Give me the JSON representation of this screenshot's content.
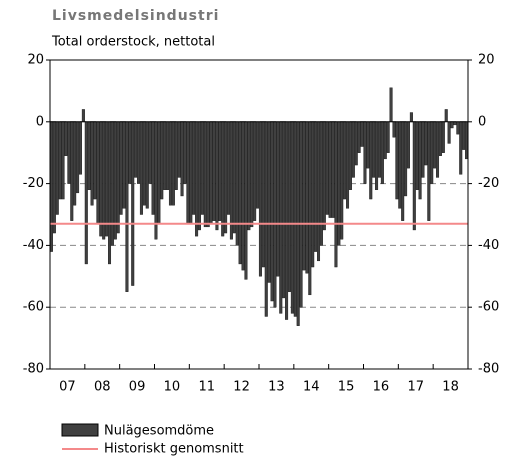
{
  "chart_data": {
    "type": "bar",
    "title": "Livsmedelsindustri",
    "subtitle": "Total orderstock, nettotal",
    "categories": [
      null,
      null,
      null,
      null,
      null,
      null,
      "07",
      null,
      null,
      null,
      null,
      null,
      null,
      null,
      null,
      null,
      null,
      null,
      "08",
      null,
      null,
      null,
      null,
      null,
      null,
      null,
      null,
      null,
      null,
      null,
      "09",
      null,
      null,
      null,
      null,
      null,
      null,
      null,
      null,
      null,
      null,
      null,
      "10",
      null,
      null,
      null,
      null,
      null,
      null,
      null,
      null,
      null,
      null,
      null,
      "11",
      null,
      null,
      null,
      null,
      null,
      null,
      null,
      null,
      null,
      null,
      null,
      "12",
      null,
      null,
      null,
      null,
      null,
      null,
      null,
      null,
      null,
      null,
      null,
      "13",
      null,
      null,
      null,
      null,
      null,
      null,
      null,
      null,
      null,
      null,
      null,
      "14",
      null,
      null,
      null,
      null,
      null,
      null,
      null,
      null,
      null,
      null,
      null,
      "15",
      null,
      null,
      null,
      null,
      null,
      null,
      null,
      null,
      null,
      null,
      null,
      "16",
      null,
      null,
      null,
      null,
      null,
      null,
      null,
      null,
      null,
      null,
      null,
      "17",
      null,
      null,
      null,
      null,
      null,
      null,
      null,
      null,
      null,
      null,
      null,
      "18",
      null,
      null,
      null,
      null,
      null
    ],
    "series": [
      {
        "name": "Nulägesomdöme",
        "color": "#404040",
        "values": [
          -42,
          -36,
          -30,
          -25,
          -25,
          -11,
          -20,
          -32,
          -27,
          -23,
          -17,
          4,
          -46,
          -22,
          -27,
          -25,
          -33,
          -37,
          -38,
          -37,
          -46,
          -40,
          -38,
          -36,
          -30,
          -28,
          -55,
          -20,
          -53,
          -18,
          -20,
          -30,
          -27,
          -28,
          -20,
          -30,
          -38,
          -33,
          -25,
          -22,
          -22,
          -27,
          -27,
          -22,
          -18,
          -24,
          -20,
          -33,
          -33,
          -30,
          -37,
          -35,
          -30,
          -34,
          -34,
          -33,
          -32,
          -35,
          -32,
          -37,
          -36,
          -30,
          -38,
          -36,
          -40,
          -46,
          -48,
          -51,
          -35,
          -34,
          -32,
          -28,
          -50,
          -47,
          -63,
          -52,
          -58,
          -60,
          -50,
          -62,
          -57,
          -64,
          -55,
          -62,
          -63,
          -66,
          -60,
          -48,
          -49,
          -56,
          -47,
          -42,
          -45,
          -40,
          -35,
          -30,
          -31,
          -31,
          -47,
          -40,
          -38,
          -25,
          -28,
          -22,
          -18,
          -14,
          -10,
          -8,
          -20,
          -15,
          -25,
          -18,
          -22,
          -18,
          -20,
          -12,
          -10,
          11,
          -5,
          -25,
          -28,
          -32,
          -24,
          -15,
          3,
          -35,
          -22,
          -25,
          -18,
          -14,
          -32,
          -20,
          -15,
          -18,
          -11,
          -10,
          4,
          -7,
          -2,
          -1,
          -4,
          -17,
          -9,
          -12
        ]
      }
    ],
    "reference_line": {
      "name": "Historiskt genomsnitt",
      "value": -33,
      "color": "#f4898a"
    },
    "ylim": [
      -80,
      20
    ],
    "yticks": [
      -80,
      -60,
      -40,
      -20,
      0,
      20
    ],
    "y2lim": [
      -80,
      20
    ],
    "y2ticks": [
      -80,
      -60,
      -40,
      -20,
      0,
      20
    ],
    "grid": true
  }
}
